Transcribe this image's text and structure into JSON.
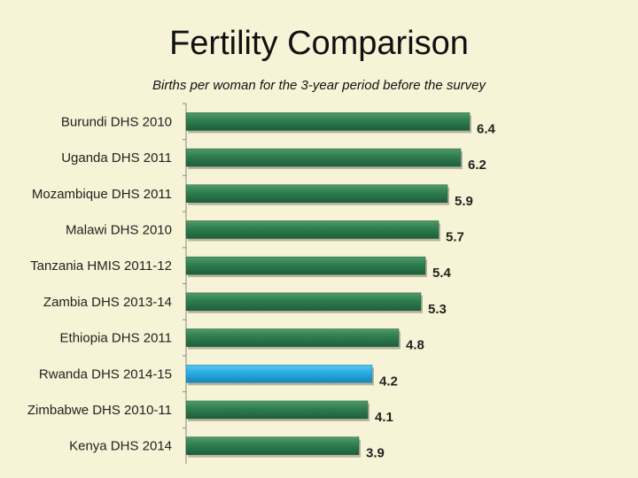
{
  "chart_data": {
    "type": "bar",
    "orientation": "horizontal",
    "title": "Fertility Comparison",
    "subtitle": "Births per woman for the 3-year period before the survey",
    "categories": [
      "Burundi DHS 2010",
      "Uganda DHS 2011",
      "Mozambique DHS 2011",
      "Malawi DHS 2010",
      "Tanzania HMIS 2011-12",
      "Zambia DHS 2013-14",
      "Ethiopia DHS 2011",
      "Rwanda DHS 2014-15",
      "Zimbabwe DHS 2010-11",
      "Kenya DHS 2014"
    ],
    "values": [
      6.4,
      6.2,
      5.9,
      5.7,
      5.4,
      5.3,
      4.8,
      4.2,
      4.1,
      3.9
    ],
    "value_labels": [
      "6.4",
      "6.2",
      "5.9",
      "5.7",
      "5.4",
      "5.3",
      "4.8",
      "4.2",
      "4.1",
      "3.9"
    ],
    "highlight_index": 7,
    "xlim": [
      0,
      7
    ],
    "grid": false,
    "colors": {
      "bar": "#2e7d4f",
      "bar_highlight": "#29abe2",
      "background": "#f7f3d6",
      "axis": "#888888"
    }
  }
}
